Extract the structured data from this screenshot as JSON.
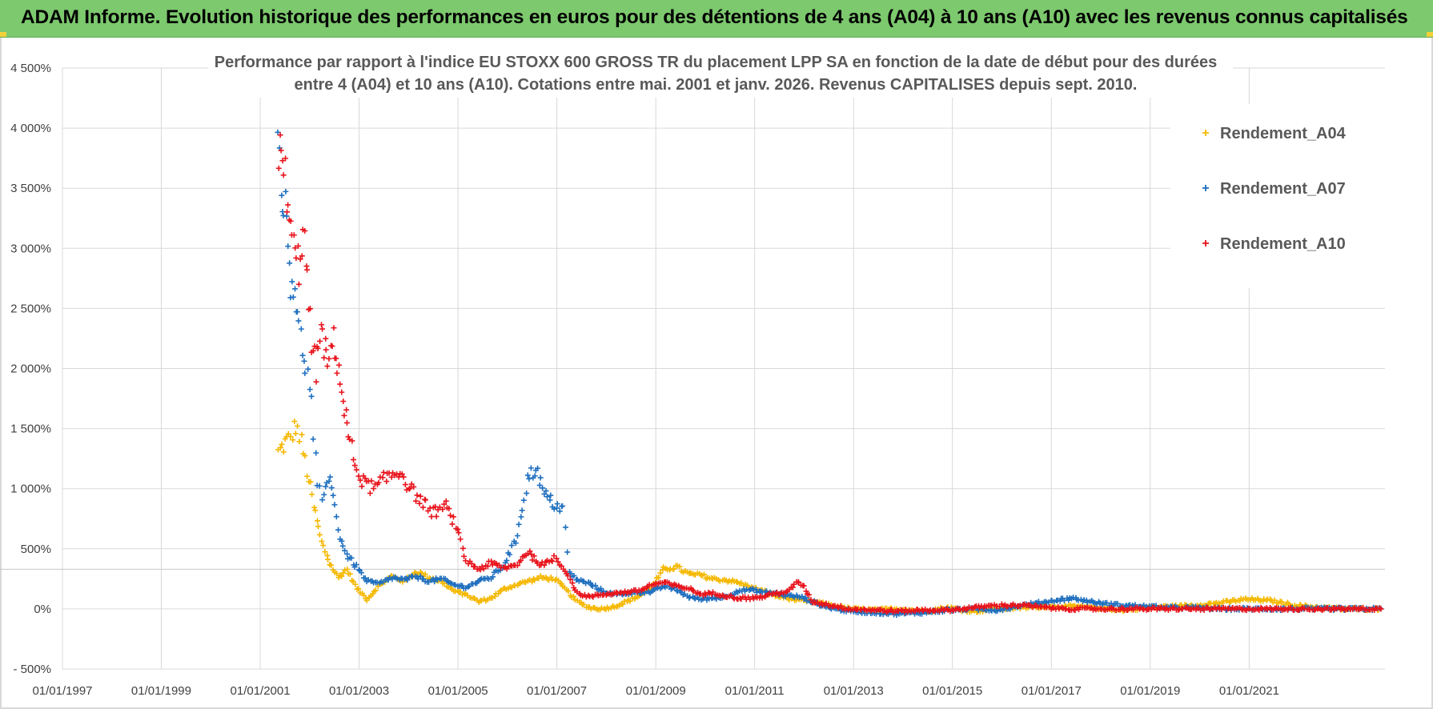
{
  "header": {
    "title": "ADAM Informe. Evolution historique des performances en euros pour des détentions de 4 ans (A04) à 10 ans (A10) avec les revenus connus capitalisés"
  },
  "colors": {
    "banner": "#7dc96e",
    "A04": "#f5b800",
    "A07": "#1f6fbf",
    "A10": "#e8141c",
    "grid": "#d9d9d9"
  },
  "chart_data": {
    "type": "scatter",
    "title_lines": [
      "Performance par rapport à l'indice EU STOXX 600 GROSS TR  du placement LPP SA en fonction de la date de début pour des durées",
      "entre 4 (A04) et 10 ans (A10).  Cotations entre mai. 2001 et janv. 2026.  Revenus CAPITALISES depuis sept. 2010."
    ],
    "x_ticks": [
      "01/01/1997",
      "01/01/1999",
      "01/01/2001",
      "01/01/2003",
      "01/01/2005",
      "01/01/2007",
      "01/01/2009",
      "01/01/2011",
      "01/01/2013",
      "01/01/2015",
      "01/01/2017",
      "01/01/2019",
      "01/01/2021"
    ],
    "y_ticks": [
      "4 500%",
      "4 000%",
      "3 500%",
      "3 000%",
      "2 500%",
      "2 000%",
      "1 500%",
      "1 000%",
      "500%",
      "0%",
      "- 500%"
    ],
    "xlim": [
      "1997-01-01",
      "2023-10-01"
    ],
    "ylim": [
      -500,
      4500
    ],
    "legend_position": "top-right",
    "marker": "+",
    "series": [
      {
        "name": "Rendement_A04",
        "points": [
          [
            "2001-05-15",
            1300
          ],
          [
            "2001-07-01",
            1380
          ],
          [
            "2001-08-15",
            1420
          ],
          [
            "2001-09-20",
            1530
          ],
          [
            "2001-11-01",
            1380
          ],
          [
            "2001-12-15",
            1150
          ],
          [
            "2002-02-01",
            850
          ],
          [
            "2002-04-01",
            550
          ],
          [
            "2002-06-01",
            380
          ],
          [
            "2002-08-01",
            260
          ],
          [
            "2002-10-01",
            330
          ],
          [
            "2002-12-15",
            170
          ],
          [
            "2003-03-01",
            80
          ],
          [
            "2003-06-01",
            200
          ],
          [
            "2003-09-01",
            270
          ],
          [
            "2003-12-01",
            230
          ],
          [
            "2004-03-01",
            310
          ],
          [
            "2004-06-01",
            260
          ],
          [
            "2004-09-01",
            230
          ],
          [
            "2004-12-01",
            150
          ],
          [
            "2005-03-01",
            120
          ],
          [
            "2005-06-01",
            60
          ],
          [
            "2005-09-01",
            90
          ],
          [
            "2005-12-01",
            160
          ],
          [
            "2006-03-01",
            200
          ],
          [
            "2006-06-01",
            230
          ],
          [
            "2006-09-01",
            260
          ],
          [
            "2006-12-15",
            250
          ],
          [
            "2007-03-01",
            170
          ],
          [
            "2007-06-01",
            60
          ],
          [
            "2007-09-01",
            10
          ],
          [
            "2007-12-01",
            0
          ],
          [
            "2008-03-01",
            20
          ],
          [
            "2008-06-01",
            60
          ],
          [
            "2008-09-01",
            110
          ],
          [
            "2008-12-01",
            180
          ],
          [
            "2009-03-01",
            330
          ],
          [
            "2009-06-01",
            350
          ],
          [
            "2009-09-01",
            290
          ],
          [
            "2009-12-01",
            280
          ],
          [
            "2010-03-01",
            250
          ],
          [
            "2010-06-01",
            240
          ],
          [
            "2010-09-01",
            220
          ],
          [
            "2010-12-01",
            180
          ],
          [
            "2011-03-01",
            150
          ],
          [
            "2011-06-01",
            110
          ],
          [
            "2011-09-01",
            90
          ],
          [
            "2011-12-01",
            70
          ],
          [
            "2012-03-01",
            60
          ],
          [
            "2012-06-01",
            40
          ],
          [
            "2012-09-01",
            20
          ],
          [
            "2012-12-01",
            0
          ],
          [
            "2013-06-01",
            -10
          ],
          [
            "2013-12-01",
            0
          ],
          [
            "2014-06-01",
            -20
          ],
          [
            "2014-12-01",
            10
          ],
          [
            "2015-06-01",
            -20
          ],
          [
            "2015-12-01",
            0
          ],
          [
            "2016-06-01",
            10
          ],
          [
            "2016-12-01",
            20
          ],
          [
            "2017-06-01",
            20
          ],
          [
            "2017-12-01",
            10
          ],
          [
            "2018-06-01",
            -10
          ],
          [
            "2018-12-01",
            10
          ],
          [
            "2019-06-01",
            20
          ],
          [
            "2019-12-01",
            30
          ],
          [
            "2020-06-01",
            50
          ],
          [
            "2020-12-01",
            80
          ],
          [
            "2021-06-01",
            70
          ],
          [
            "2021-12-01",
            30
          ],
          [
            "2022-06-01",
            10
          ],
          [
            "2022-12-01",
            0
          ],
          [
            "2023-09-01",
            0
          ]
        ]
      },
      {
        "name": "Rendement_A07",
        "points": [
          [
            "2001-05-15",
            3900
          ],
          [
            "2001-06-15",
            3500
          ],
          [
            "2001-07-15",
            3200
          ],
          [
            "2001-08-15",
            2750
          ],
          [
            "2001-09-15",
            2700
          ],
          [
            "2001-10-15",
            2300
          ],
          [
            "2001-12-01",
            2050
          ],
          [
            "2002-01-15",
            1700
          ],
          [
            "2002-03-01",
            1000
          ],
          [
            "2002-04-15",
            900
          ],
          [
            "2002-06-01",
            1150
          ],
          [
            "2002-08-01",
            650
          ],
          [
            "2002-10-01",
            450
          ],
          [
            "2002-12-15",
            350
          ],
          [
            "2003-03-01",
            230
          ],
          [
            "2003-06-01",
            210
          ],
          [
            "2003-09-01",
            260
          ],
          [
            "2003-12-01",
            240
          ],
          [
            "2004-03-01",
            270
          ],
          [
            "2004-06-01",
            230
          ],
          [
            "2004-09-01",
            250
          ],
          [
            "2004-12-01",
            200
          ],
          [
            "2005-03-01",
            180
          ],
          [
            "2005-06-01",
            230
          ],
          [
            "2005-09-01",
            260
          ],
          [
            "2005-12-01",
            360
          ],
          [
            "2006-03-01",
            560
          ],
          [
            "2006-06-01",
            1080
          ],
          [
            "2006-08-01",
            1180
          ],
          [
            "2006-10-01",
            950
          ],
          [
            "2006-12-15",
            870
          ],
          [
            "2007-02-15",
            830
          ],
          [
            "2007-04-01",
            300
          ],
          [
            "2007-06-01",
            240
          ],
          [
            "2007-09-01",
            210
          ],
          [
            "2007-12-01",
            150
          ],
          [
            "2008-03-01",
            120
          ],
          [
            "2008-06-01",
            130
          ],
          [
            "2008-09-01",
            140
          ],
          [
            "2008-12-01",
            140
          ],
          [
            "2009-03-01",
            190
          ],
          [
            "2009-06-01",
            160
          ],
          [
            "2009-09-01",
            100
          ],
          [
            "2009-12-01",
            80
          ],
          [
            "2010-03-01",
            90
          ],
          [
            "2010-06-01",
            100
          ],
          [
            "2010-09-01",
            150
          ],
          [
            "2010-12-01",
            160
          ],
          [
            "2011-03-01",
            140
          ],
          [
            "2011-06-01",
            130
          ],
          [
            "2011-09-01",
            110
          ],
          [
            "2011-12-01",
            100
          ],
          [
            "2012-03-01",
            60
          ],
          [
            "2012-06-01",
            20
          ],
          [
            "2012-09-01",
            0
          ],
          [
            "2012-12-01",
            -20
          ],
          [
            "2013-06-01",
            -30
          ],
          [
            "2013-12-01",
            -40
          ],
          [
            "2014-06-01",
            -30
          ],
          [
            "2014-12-01",
            -10
          ],
          [
            "2015-06-01",
            0
          ],
          [
            "2015-12-01",
            -10
          ],
          [
            "2016-06-01",
            30
          ],
          [
            "2016-12-01",
            60
          ],
          [
            "2017-06-01",
            90
          ],
          [
            "2017-12-01",
            50
          ],
          [
            "2018-06-01",
            30
          ],
          [
            "2018-12-01",
            20
          ],
          [
            "2019-06-01",
            10
          ],
          [
            "2019-12-01",
            10
          ],
          [
            "2020-06-01",
            0
          ],
          [
            "2021-06-01",
            0
          ],
          [
            "2023-09-01",
            0
          ]
        ]
      },
      {
        "name": "Rendement_A10",
        "points": [
          [
            "2001-05-15",
            3850
          ],
          [
            "2001-06-15",
            3700
          ],
          [
            "2001-07-15",
            3500
          ],
          [
            "2001-08-15",
            3100
          ],
          [
            "2001-09-15",
            2950
          ],
          [
            "2001-10-15",
            2850
          ],
          [
            "2001-11-15",
            3200
          ],
          [
            "2001-12-15",
            2700
          ],
          [
            "2002-01-15",
            2200
          ],
          [
            "2002-02-15",
            2000
          ],
          [
            "2002-03-15",
            2300
          ],
          [
            "2002-04-15",
            2200
          ],
          [
            "2002-05-15",
            2000
          ],
          [
            "2002-06-15",
            2250
          ],
          [
            "2002-07-15",
            2150
          ],
          [
            "2002-08-15",
            1900
          ],
          [
            "2002-09-15",
            1650
          ],
          [
            "2002-10-15",
            1450
          ],
          [
            "2002-12-01",
            1200
          ],
          [
            "2003-02-01",
            1050
          ],
          [
            "2003-05-01",
            1000
          ],
          [
            "2003-08-01",
            1100
          ],
          [
            "2003-11-01",
            1150
          ],
          [
            "2004-01-15",
            1000
          ],
          [
            "2004-04-01",
            900
          ],
          [
            "2004-07-01",
            800
          ],
          [
            "2004-10-01",
            850
          ],
          [
            "2004-12-15",
            700
          ],
          [
            "2005-03-01",
            400
          ],
          [
            "2005-06-01",
            330
          ],
          [
            "2005-09-01",
            380
          ],
          [
            "2005-12-01",
            340
          ],
          [
            "2006-03-01",
            360
          ],
          [
            "2006-06-01",
            480
          ],
          [
            "2006-08-01",
            400
          ],
          [
            "2006-10-01",
            360
          ],
          [
            "2006-12-15",
            430
          ],
          [
            "2007-03-01",
            330
          ],
          [
            "2007-06-01",
            130
          ],
          [
            "2007-09-01",
            100
          ],
          [
            "2007-12-01",
            120
          ],
          [
            "2008-03-01",
            130
          ],
          [
            "2008-06-01",
            140
          ],
          [
            "2008-09-01",
            150
          ],
          [
            "2008-12-01",
            200
          ],
          [
            "2009-03-01",
            220
          ],
          [
            "2009-06-01",
            190
          ],
          [
            "2009-09-01",
            170
          ],
          [
            "2009-12-01",
            120
          ],
          [
            "2010-03-01",
            130
          ],
          [
            "2010-06-01",
            110
          ],
          [
            "2010-09-01",
            90
          ],
          [
            "2010-12-01",
            90
          ],
          [
            "2011-03-01",
            100
          ],
          [
            "2011-06-01",
            130
          ],
          [
            "2011-09-01",
            140
          ],
          [
            "2011-11-15",
            230
          ],
          [
            "2012-01-01",
            180
          ],
          [
            "2012-03-01",
            60
          ],
          [
            "2012-06-01",
            40
          ],
          [
            "2012-09-01",
            20
          ],
          [
            "2012-12-01",
            0
          ],
          [
            "2013-06-01",
            -10
          ],
          [
            "2013-12-01",
            -20
          ],
          [
            "2014-06-01",
            -10
          ],
          [
            "2014-12-01",
            -10
          ],
          [
            "2015-06-01",
            10
          ],
          [
            "2015-12-01",
            30
          ],
          [
            "2016-06-01",
            30
          ],
          [
            "2016-12-01",
            10
          ],
          [
            "2017-06-01",
            0
          ],
          [
            "2018-06-01",
            0
          ],
          [
            "2019-06-01",
            0
          ],
          [
            "2020-06-01",
            0
          ],
          [
            "2021-06-01",
            0
          ],
          [
            "2022-06-01",
            0
          ],
          [
            "2023-09-01",
            0
          ]
        ]
      }
    ]
  }
}
